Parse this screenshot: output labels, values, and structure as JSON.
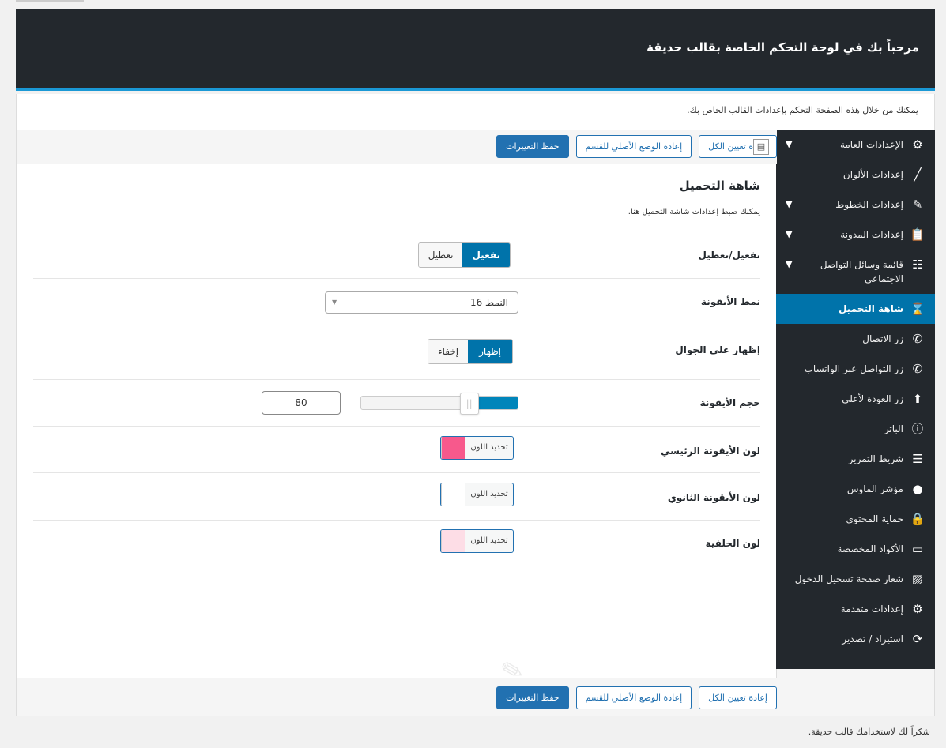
{
  "header": {
    "title": "مرحباً بك في لوحة التحكم الخاصة بقالب حديقة"
  },
  "intro": "يمكنك من خلال هذه الصفحة التحكم بإعدادات القالب الخاص بك.",
  "toolbar": {
    "save": "حفظ التغييرات",
    "reset_section": "إعادة الوضع الأصلي للقسم",
    "reset_all": "إعادة تعيين الكل"
  },
  "sidebar": {
    "items": [
      {
        "label": "الإعدادات العامة",
        "icon": "gear-icon",
        "expandable": true
      },
      {
        "label": "إعدادات الألوان",
        "icon": "brush-icon"
      },
      {
        "label": "إعدادات الخطوط",
        "icon": "pencil-icon",
        "expandable": true
      },
      {
        "label": "إعدادات المدونة",
        "icon": "clipboard-icon",
        "expandable": true
      },
      {
        "label": "قائمة وسائل التواصل الاجتماعي",
        "icon": "list-icon",
        "expandable": true
      },
      {
        "label": "شاهة التحميل",
        "icon": "hourglass-icon",
        "active": true
      },
      {
        "label": "زر الاتصال",
        "icon": "phone-icon"
      },
      {
        "label": "زر التواصل عبر الواتساب",
        "icon": "phone-circle-icon"
      },
      {
        "label": "زر العودة لأعلى",
        "icon": "arrow-up-circle-icon"
      },
      {
        "label": "الباتر",
        "icon": "info-icon"
      },
      {
        "label": "شريط التمرير",
        "icon": "sliders-icon"
      },
      {
        "label": "مؤشر الماوس",
        "icon": "circle-icon"
      },
      {
        "label": "حماية المحتوى",
        "icon": "lock-icon"
      },
      {
        "label": "الأكواد المخصصة",
        "icon": "css-icon"
      },
      {
        "label": "شعار صفحة تسجيل الدخول",
        "icon": "image-icon"
      },
      {
        "label": "إعدادات متقدمة",
        "icon": "gears-icon"
      },
      {
        "label": "استيراد / تصدير",
        "icon": "refresh-icon"
      }
    ]
  },
  "section": {
    "title": "شاهة التحميل",
    "description": "يمكنك ضبط إعدادات شاشة التحميل هنا.",
    "fields": {
      "enable": {
        "label": "تفعيل/تعطيل",
        "options": [
          "تفعيل",
          "تعطيل"
        ],
        "selected": "تفعيل"
      },
      "icon_style": {
        "label": "نمط الأيقونة",
        "value": "النمط 16"
      },
      "mobile": {
        "label": "إظهار على الجوال",
        "options": [
          "إظهار",
          "إخفاء"
        ],
        "selected": "إظهار"
      },
      "icon_size": {
        "label": "حجم الأيقونة",
        "value": "80",
        "slider_fill_percent": 31
      },
      "primary_color": {
        "label": "لون الأيقونة الرئيسي",
        "button": "تحديد اللون",
        "color": "#f7598c"
      },
      "secondary_color": {
        "label": "لون الأيقونة الثانوي",
        "button": "تحديد اللون",
        "color": "#ffffff"
      },
      "background_color": {
        "label": "لون الخلفية",
        "button": "تحديد اللون",
        "color": "#fddde6"
      }
    }
  },
  "footer": "شكراً لك لاستخدامك قالب حديقة.",
  "colors": {
    "header_bg": "#23282d",
    "accent": "#0073aa",
    "button": "#2271b1"
  }
}
